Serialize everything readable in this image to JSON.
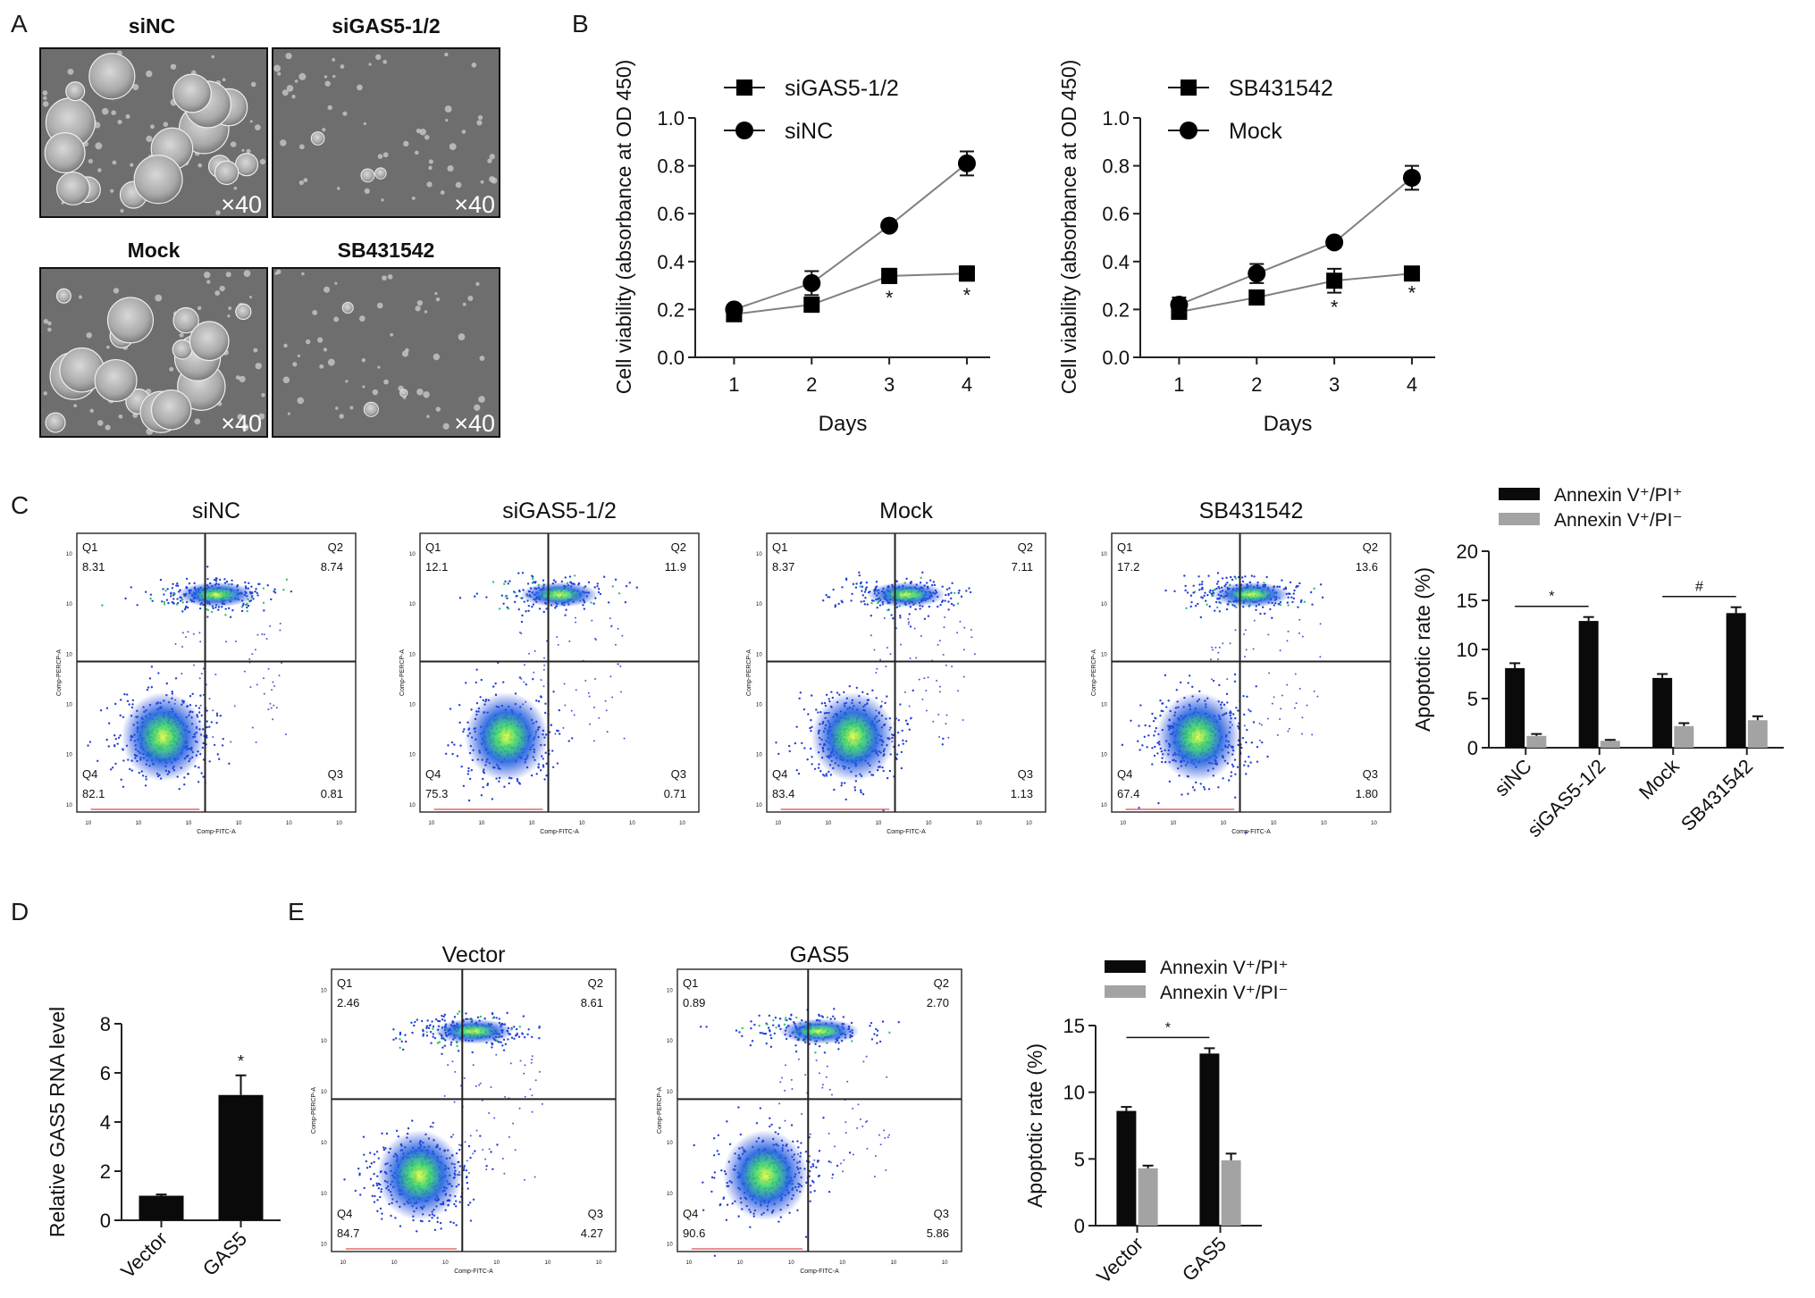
{
  "panel_labels": [
    "A",
    "B",
    "C",
    "D",
    "E"
  ],
  "panel_a": {
    "images": [
      {
        "label": "siNC",
        "magnification": "×40"
      },
      {
        "label": "siGAS5-1/2",
        "magnification": "×40"
      },
      {
        "label": "Mock",
        "magnification": "×40"
      },
      {
        "label": "SB431542",
        "magnification": "×40"
      }
    ]
  },
  "flow_plots": [
    {
      "title": "siNC",
      "Q1": "8.31",
      "Q2": "8.74",
      "Q3": "0.81",
      "Q4": "82.1"
    },
    {
      "title": "siGAS5-1/2",
      "Q1": "12.1",
      "Q2": "11.9",
      "Q3": "0.71",
      "Q4": "75.3"
    },
    {
      "title": "Mock",
      "Q1": "8.37",
      "Q2": "7.11",
      "Q3": "1.13",
      "Q4": "83.4"
    },
    {
      "title": "SB431542",
      "Q1": "17.2",
      "Q2": "13.6",
      "Q3": "1.80",
      "Q4": "67.4"
    },
    {
      "title": "Vector",
      "Q1": "2.46",
      "Q2": "8.61",
      "Q3": "4.27",
      "Q4": "84.7"
    },
    {
      "title": "GAS5",
      "Q1": "0.89",
      "Q2": "2.70",
      "Q3": "5.86",
      "Q4": "90.6"
    }
  ],
  "flow_axis": {
    "x": "Comp-FITC-A",
    "y": "Comp-PERCP-A",
    "q_labels": [
      "Q1",
      "Q2",
      "Q3",
      "Q4"
    ]
  },
  "colors": {
    "black_bar": "#0a0a0a",
    "gray_bar": "#a3a3a3",
    "line": "#808080",
    "marker": "#000000"
  },
  "chart_data": [
    {
      "id": "B-left",
      "type": "line",
      "xlabel": "Days",
      "ylabel": "Cell viability (absorbance at OD 450)",
      "x": [
        1,
        2,
        3,
        4
      ],
      "ylim": [
        0,
        1.0
      ],
      "yticks": [
        "0.0",
        "0.2",
        "0.4",
        "0.6",
        "0.8",
        "1.0"
      ],
      "series": [
        {
          "name": "siGAS5-1/2",
          "marker": "square",
          "values": [
            0.18,
            0.22,
            0.34,
            0.35
          ],
          "err": [
            0.02,
            0.03,
            0.03,
            0.03
          ]
        },
        {
          "name": "siNC",
          "marker": "circle",
          "values": [
            0.2,
            0.31,
            0.55,
            0.81
          ],
          "err": [
            0.02,
            0.05,
            0.01,
            0.05
          ]
        }
      ],
      "annotations": [
        {
          "x": 3,
          "text": "*"
        },
        {
          "x": 4,
          "text": "*"
        }
      ],
      "legend": "top-left"
    },
    {
      "id": "B-right",
      "type": "line",
      "xlabel": "Days",
      "ylabel": "Cell viability (absorbance at OD 450)",
      "x": [
        1,
        2,
        3,
        4
      ],
      "ylim": [
        0,
        1.0
      ],
      "yticks": [
        "0.0",
        "0.2",
        "0.4",
        "0.6",
        "0.8",
        "1.0"
      ],
      "series": [
        {
          "name": "SB431542",
          "marker": "square",
          "values": [
            0.19,
            0.25,
            0.32,
            0.35
          ],
          "err": [
            0.02,
            0.02,
            0.05,
            0.02
          ]
        },
        {
          "name": "Mock",
          "marker": "circle",
          "values": [
            0.22,
            0.35,
            0.48,
            0.75
          ],
          "err": [
            0.03,
            0.04,
            0.02,
            0.05
          ]
        }
      ],
      "annotations": [
        {
          "x": 3,
          "text": "*"
        },
        {
          "x": 4,
          "text": "*"
        }
      ],
      "legend": "top-left"
    },
    {
      "id": "C-bar",
      "type": "bar",
      "ylabel": "Apoptotic rate (%)",
      "ylim": [
        0,
        20
      ],
      "yticks": [
        "0",
        "5",
        "10",
        "15",
        "20"
      ],
      "categories": [
        "siNC",
        "siGAS5-1/2",
        "Mock",
        "SB431542"
      ],
      "series": [
        {
          "name": "Annexin V⁺/PI⁺",
          "values": [
            8.1,
            12.9,
            7.1,
            13.7
          ],
          "err": [
            0.5,
            0.4,
            0.4,
            0.6
          ]
        },
        {
          "name": "Annexin V⁺/PI⁻",
          "values": [
            1.2,
            0.7,
            2.2,
            2.8
          ],
          "err": [
            0.2,
            0.1,
            0.3,
            0.4
          ]
        }
      ],
      "annotations": [
        {
          "from": 0,
          "to": 1,
          "text": "*"
        },
        {
          "from": 2,
          "to": 3,
          "text": "#"
        }
      ],
      "legend": "top"
    },
    {
      "id": "D-bar",
      "type": "bar",
      "ylabel": "Relative GAS5 RNA level",
      "ylim": [
        0,
        8
      ],
      "yticks": [
        "0",
        "2",
        "4",
        "6",
        "8"
      ],
      "categories": [
        "Vector",
        "GAS5"
      ],
      "values": [
        1.0,
        5.1
      ],
      "err": [
        0.05,
        0.8
      ],
      "annotations": [
        {
          "category": 1,
          "text": "*"
        }
      ]
    },
    {
      "id": "E-bar",
      "type": "bar",
      "ylabel": "Apoptotic rate (%)",
      "ylim": [
        0,
        15
      ],
      "yticks": [
        "0",
        "5",
        "10",
        "15"
      ],
      "categories": [
        "Vector",
        "GAS5"
      ],
      "series": [
        {
          "name": "Annexin V⁺/PI⁺",
          "values": [
            8.6,
            12.9
          ],
          "err": [
            0.3,
            0.4
          ]
        },
        {
          "name": "Annexin V⁺/PI⁻",
          "values": [
            4.3,
            4.9
          ],
          "err": [
            0.2,
            0.5
          ]
        }
      ],
      "annotations": [
        {
          "from": 0,
          "to": 1,
          "text": "*"
        }
      ],
      "legend": "top"
    }
  ]
}
